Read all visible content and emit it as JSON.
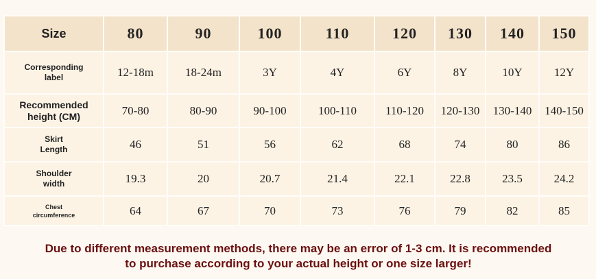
{
  "table": {
    "header": [
      "Size",
      "80",
      "90",
      "100",
      "110",
      "120",
      "130",
      "140",
      "150"
    ],
    "rows": [
      [
        "Corresponding label",
        "12-18m",
        "18-24m",
        "3Y",
        "4Y",
        "6Y",
        "8Y",
        "10Y",
        "12Y"
      ],
      [
        "Recommended height (CM)",
        "70-80",
        "80-90",
        "90-100",
        "100-110",
        "110-120",
        "120-130",
        "130-140",
        "140-150"
      ],
      [
        "Skirt Length",
        "46",
        "51",
        "56",
        "62",
        "68",
        "74",
        "80",
        "86"
      ],
      [
        "Shoulder width",
        "19.3",
        "20",
        "20.7",
        "21.4",
        "22.1",
        "22.8",
        "23.5",
        "24.2"
      ],
      [
        "Chest circumference",
        "64",
        "67",
        "70",
        "73",
        "76",
        "79",
        "82",
        "85"
      ]
    ]
  },
  "note": "Due to different measurement methods, there may be an error of 1-3 cm. It is recommended to purchase according to your actual height or one size larger!"
}
